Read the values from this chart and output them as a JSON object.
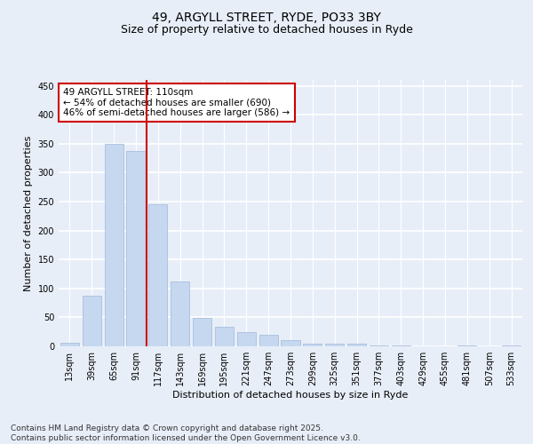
{
  "title_line1": "49, ARGYLL STREET, RYDE, PO33 3BY",
  "title_line2": "Size of property relative to detached houses in Ryde",
  "xlabel": "Distribution of detached houses by size in Ryde",
  "ylabel": "Number of detached properties",
  "bar_labels": [
    "13sqm",
    "39sqm",
    "65sqm",
    "91sqm",
    "117sqm",
    "143sqm",
    "169sqm",
    "195sqm",
    "221sqm",
    "247sqm",
    "273sqm",
    "299sqm",
    "325sqm",
    "351sqm",
    "377sqm",
    "403sqm",
    "429sqm",
    "455sqm",
    "481sqm",
    "507sqm",
    "533sqm"
  ],
  "bar_values": [
    6,
    88,
    349,
    337,
    246,
    112,
    49,
    33,
    25,
    20,
    10,
    5,
    5,
    4,
    2,
    1,
    0,
    0,
    1,
    0,
    1
  ],
  "bar_color": "#c5d8f0",
  "bar_edge_color": "#a0b8d8",
  "background_color": "#e8eef8",
  "grid_color": "#ffffff",
  "annotation_text": "49 ARGYLL STREET: 110sqm\n← 54% of detached houses are smaller (690)\n46% of semi-detached houses are larger (586) →",
  "annotation_box_color": "#ffffff",
  "annotation_box_edge": "#cc0000",
  "vline_color": "#cc0000",
  "ylim": [
    0,
    460
  ],
  "yticks": [
    0,
    50,
    100,
    150,
    200,
    250,
    300,
    350,
    400,
    450
  ],
  "footnote": "Contains HM Land Registry data © Crown copyright and database right 2025.\nContains public sector information licensed under the Open Government Licence v3.0.",
  "title_fontsize": 10,
  "subtitle_fontsize": 9,
  "axis_label_fontsize": 8,
  "tick_fontsize": 7,
  "annotation_fontsize": 7.5,
  "footnote_fontsize": 6.5
}
